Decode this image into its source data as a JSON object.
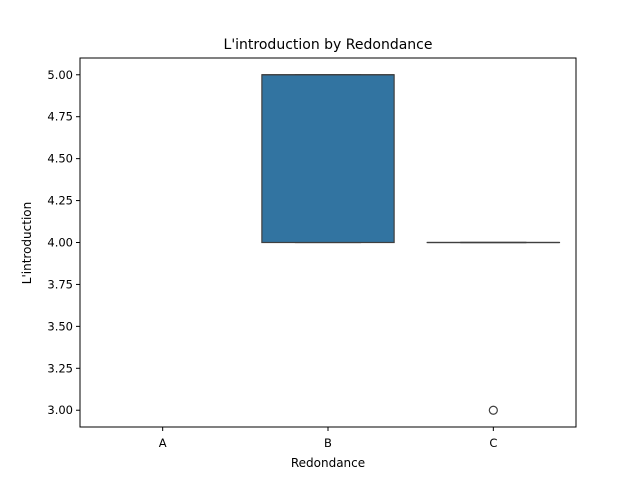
{
  "chart_data": {
    "type": "box",
    "title": "L'introduction by Redondance",
    "xlabel": "Redondance",
    "ylabel": "L'introduction",
    "categories": [
      "A",
      "B",
      "C"
    ],
    "ylim": [
      2.9,
      5.1
    ],
    "yticks": [
      3.0,
      3.25,
      3.5,
      3.75,
      4.0,
      4.25,
      4.5,
      4.75,
      5.0
    ],
    "ytick_labels": [
      "3.00",
      "3.25",
      "3.50",
      "3.75",
      "4.00",
      "4.25",
      "4.50",
      "4.75",
      "5.00"
    ],
    "boxes": [
      {
        "category": "A",
        "empty": true
      },
      {
        "category": "B",
        "whisker_low": 4.0,
        "q1": 4.0,
        "median": 5.0,
        "q3": 5.0,
        "whisker_high": 5.0,
        "outliers": []
      },
      {
        "category": "C",
        "whisker_low": 4.0,
        "q1": 4.0,
        "median": 4.0,
        "q3": 4.0,
        "whisker_high": 4.0,
        "outliers": [
          3.0
        ]
      }
    ],
    "box_color": "#3274a1",
    "line_color": "#3f3f3f",
    "grid": false
  }
}
